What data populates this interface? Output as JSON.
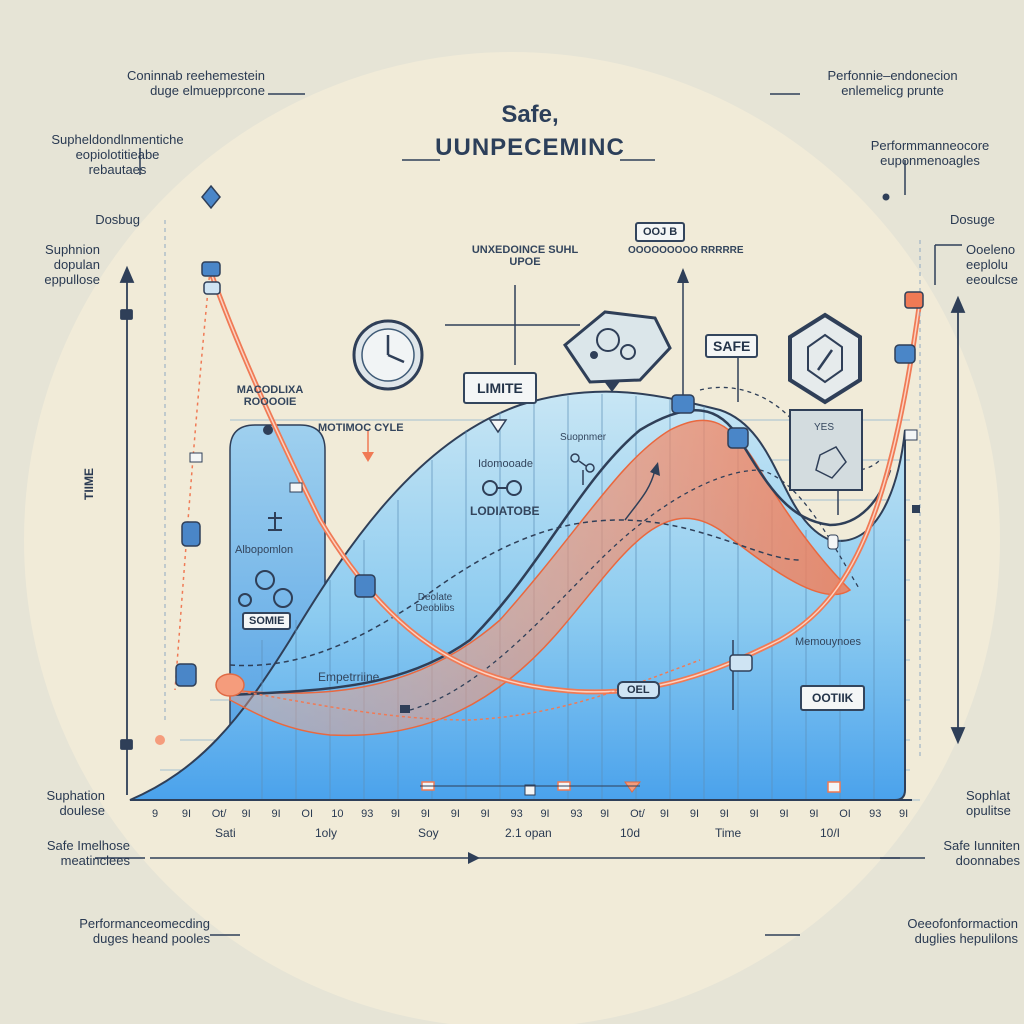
{
  "title": {
    "line1": "Safe,",
    "line2": "UUNPECEMINC"
  },
  "side_notes": {
    "top_left": [
      "Coninnab reehemestein",
      "duge elmuepprcone"
    ],
    "upper_left": [
      "Supheldondlnmentiche",
      "eopiolotitieabe",
      "rebautaes"
    ],
    "left_dosage": "Dosbug",
    "left_supp": [
      "Suphnion",
      "dopulan",
      "eppullose"
    ],
    "bottom_left_supp": [
      "Suphation",
      "doulese"
    ],
    "bottom_left_safe": [
      "Safe Imelhose",
      "meatinclees"
    ],
    "bottom_left_perf": [
      "Performanceomecding",
      "duges heand pooles"
    ],
    "top_right": [
      "Perfonnie–endonecion",
      "enlemelicg prunte"
    ],
    "upper_right": [
      "Performmanneocore",
      "euponmenoagles"
    ],
    "right_dosage": "Dosuge",
    "right_supp": [
      "Ooeleno",
      "eeplolu",
      "eeoulcse"
    ],
    "bottom_right_supp": [
      "Sophlat",
      "opulitse"
    ],
    "bottom_right_safe": [
      "Safe Iunniten",
      "doonnabes"
    ],
    "bottom_right_perf": [
      "Oeeofonformaction",
      "duglies hepulilons"
    ]
  },
  "chart_labels": {
    "unexpected": [
      "UNXEDOINCE SUHL",
      "UPOE"
    ],
    "top_tag": "OOJ B",
    "top_right_mini": "OOOOOOOOO RRRRRE",
    "limite": "LIMITE",
    "safe_tag": "SAFE",
    "microcycle": [
      "MACODLIXA",
      "ROOOOIE"
    ],
    "motion_cycle": "MOTIMOC CYLE",
    "supp_label": "Suopnmer",
    "inner_title": "Idomooade",
    "lodatobe": "LODIATOBE",
    "alternation": "Albopomlon",
    "somme": "SOMIE",
    "dotted_notes": [
      "Deolate",
      "Deoblibs"
    ],
    "emp_label": "Empetrriine",
    "memory": "Memouynoes",
    "option": "OOTIIK",
    "oel": "OEL",
    "yes_label": "YES",
    "y_axis": "TIIME"
  },
  "x_ticks": [
    "9",
    "9I",
    "Ot/",
    "9I",
    "9I",
    "OI",
    "10",
    "93",
    "9I",
    "9I",
    "9I",
    "9I",
    "93",
    "9I",
    "93",
    "9I",
    "Ot/",
    "9I",
    "9I",
    "9I",
    "9I",
    "9I",
    "9I",
    "OI",
    "93",
    "9I"
  ],
  "x_labels": [
    "Sati",
    "1oly",
    "Soy",
    "2.1 opan",
    "10d",
    "Time",
    "10/I"
  ],
  "colors": {
    "blue_fill": "#6fb6ea",
    "orange": "#f07a55",
    "navy": "#2f3f58",
    "bg": "#e6e4d6",
    "circle": "#f2ecdb"
  }
}
